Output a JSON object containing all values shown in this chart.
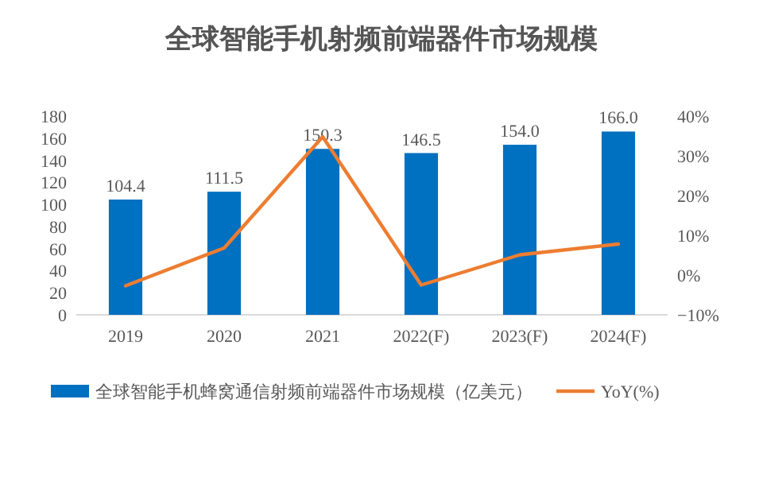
{
  "chart_data": {
    "type": "bar",
    "title": "全球智能手机射频前端器件市场规模",
    "categories": [
      "2019",
      "2020",
      "2021",
      "2022(F)",
      "2023(F)",
      "2024(F)"
    ],
    "series": [
      {
        "name": "全球智能手机蜂窝通信射频前端器件市场规模（亿美元）",
        "color": "#0070c0",
        "values": [
          104.4,
          111.5,
          150.3,
          146.5,
          154.0,
          166.0
        ],
        "value_labels": [
          "104.4",
          "111.5",
          "150.3",
          "146.5",
          "154.0",
          "166.0"
        ]
      },
      {
        "name": "YoY(%)",
        "type": "line",
        "axis": "y2",
        "color": "#ed7d31",
        "values": [
          -2.7,
          6.8,
          34.8,
          -2.5,
          5.1,
          7.8
        ]
      }
    ],
    "ylim": [
      0,
      180
    ],
    "yticks": [
      0,
      20,
      40,
      60,
      80,
      100,
      120,
      140,
      160,
      180
    ],
    "y2lim": [
      -10,
      40
    ],
    "y2ticks": [
      {
        "value": -10,
        "label": "−10%"
      },
      {
        "value": 0,
        "label": "0%"
      },
      {
        "value": 10,
        "label": "10%"
      },
      {
        "value": 20,
        "label": "20%"
      },
      {
        "value": 30,
        "label": "30%"
      },
      {
        "value": 40,
        "label": "40%"
      }
    ],
    "legend": "bottom"
  }
}
